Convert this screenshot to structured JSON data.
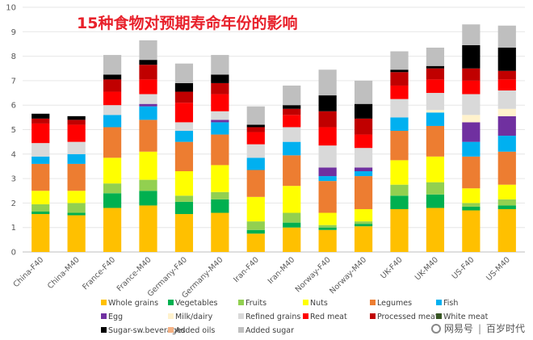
{
  "chart_data": {
    "type": "bar",
    "stacked": true,
    "title": "15种食物对预期寿命年份的影响",
    "xlabel": "",
    "ylabel": "",
    "ylim": [
      0,
      10
    ],
    "yticks": [
      0,
      1,
      2,
      3,
      4,
      5,
      6,
      7,
      8,
      9,
      10
    ],
    "grid": true,
    "legend_position": "bottom",
    "categories": [
      "China-F40",
      "China-M40",
      "France-F40",
      "France-M40",
      "Germany-F40",
      "Germany-M40",
      "Iran-F40",
      "Iran-M40",
      "Norway-F40",
      "Norway-M40",
      "UK-F40",
      "UK-M40",
      "US-F40",
      "US-M40"
    ],
    "series": [
      {
        "name": "Whole grains",
        "color": "#ffc000",
        "values": [
          1.55,
          1.5,
          1.8,
          1.9,
          1.55,
          1.6,
          0.75,
          1.0,
          0.9,
          1.05,
          1.75,
          1.8,
          1.7,
          1.75
        ]
      },
      {
        "name": "Vegetables",
        "color": "#00b050",
        "values": [
          0.1,
          0.1,
          0.6,
          0.6,
          0.5,
          0.55,
          0.15,
          0.2,
          0.1,
          0.1,
          0.55,
          0.55,
          0.15,
          0.15
        ]
      },
      {
        "name": "Fruits",
        "color": "#92d050",
        "values": [
          0.3,
          0.4,
          0.4,
          0.45,
          0.25,
          0.3,
          0.35,
          0.4,
          0.1,
          0.1,
          0.45,
          0.5,
          0.15,
          0.25
        ]
      },
      {
        "name": "Nuts",
        "color": "#ffff00",
        "values": [
          0.55,
          0.5,
          1.05,
          1.15,
          1.0,
          1.1,
          1.0,
          1.1,
          0.5,
          0.5,
          1.0,
          1.05,
          0.6,
          0.6
        ]
      },
      {
        "name": "Legumes",
        "color": "#ed7d31",
        "values": [
          1.1,
          1.1,
          1.25,
          1.3,
          1.2,
          1.25,
          1.1,
          1.25,
          1.3,
          1.35,
          1.2,
          1.25,
          1.3,
          1.35
        ]
      },
      {
        "name": "Fish",
        "color": "#00b0f0",
        "values": [
          0.3,
          0.4,
          0.5,
          0.55,
          0.45,
          0.5,
          0.5,
          0.55,
          0.2,
          0.2,
          0.55,
          0.55,
          0.6,
          0.65
        ]
      },
      {
        "name": "Egg",
        "color": "#7030a0",
        "values": [
          0,
          0,
          0,
          0.1,
          0,
          0.1,
          0,
          0,
          0.35,
          0.15,
          0,
          0,
          0.8,
          0.8
        ]
      },
      {
        "name": "Milk/dairy",
        "color": "#fff2cc",
        "values": [
          0,
          0,
          0,
          0,
          0,
          0,
          0,
          0,
          0,
          0,
          0,
          0.1,
          0.3,
          0.3
        ]
      },
      {
        "name": "Refined grains",
        "color": "#d9d9d9",
        "values": [
          0.55,
          0.5,
          0.4,
          0.4,
          0.35,
          0.35,
          0.55,
          0.6,
          0.9,
          0.8,
          0.75,
          0.7,
          0.85,
          0.75
        ]
      },
      {
        "name": "Red meat",
        "color": "#ff0000",
        "values": [
          0.8,
          0.7,
          0.55,
          0.6,
          0.8,
          0.7,
          0.5,
          0.5,
          0.75,
          0.55,
          0.55,
          0.55,
          0.55,
          0.45
        ]
      },
      {
        "name": "Processed meat",
        "color": "#c00000",
        "values": [
          0.2,
          0.2,
          0.5,
          0.6,
          0.45,
          0.45,
          0.2,
          0.25,
          0.65,
          0.65,
          0.55,
          0.45,
          0.5,
          0.35
        ]
      },
      {
        "name": "White meat",
        "color": "#375623",
        "values": [
          0,
          0,
          0,
          0,
          0,
          0,
          0,
          0,
          0,
          0,
          0,
          0,
          0,
          0
        ]
      },
      {
        "name": "Sugar-sw.beverages",
        "color": "#000000",
        "values": [
          0.2,
          0.15,
          0.2,
          0.2,
          0.35,
          0.35,
          0.1,
          0.15,
          0.65,
          0.6,
          0.1,
          0.1,
          0.95,
          0.95
        ]
      },
      {
        "name": "Added oils",
        "color": "#f4b183",
        "values": [
          0,
          0,
          0,
          0,
          0,
          0,
          0,
          0,
          0,
          0,
          0,
          0,
          0,
          0
        ]
      },
      {
        "name": "Added sugar",
        "color": "#bfbfbf",
        "values": [
          0,
          0,
          0.8,
          0.8,
          0.8,
          0.8,
          0.75,
          0.8,
          1.05,
          0.95,
          0.75,
          0.75,
          0.85,
          0.9
        ]
      }
    ]
  },
  "watermark": {
    "brand": "网易号",
    "account": "百岁时代"
  }
}
